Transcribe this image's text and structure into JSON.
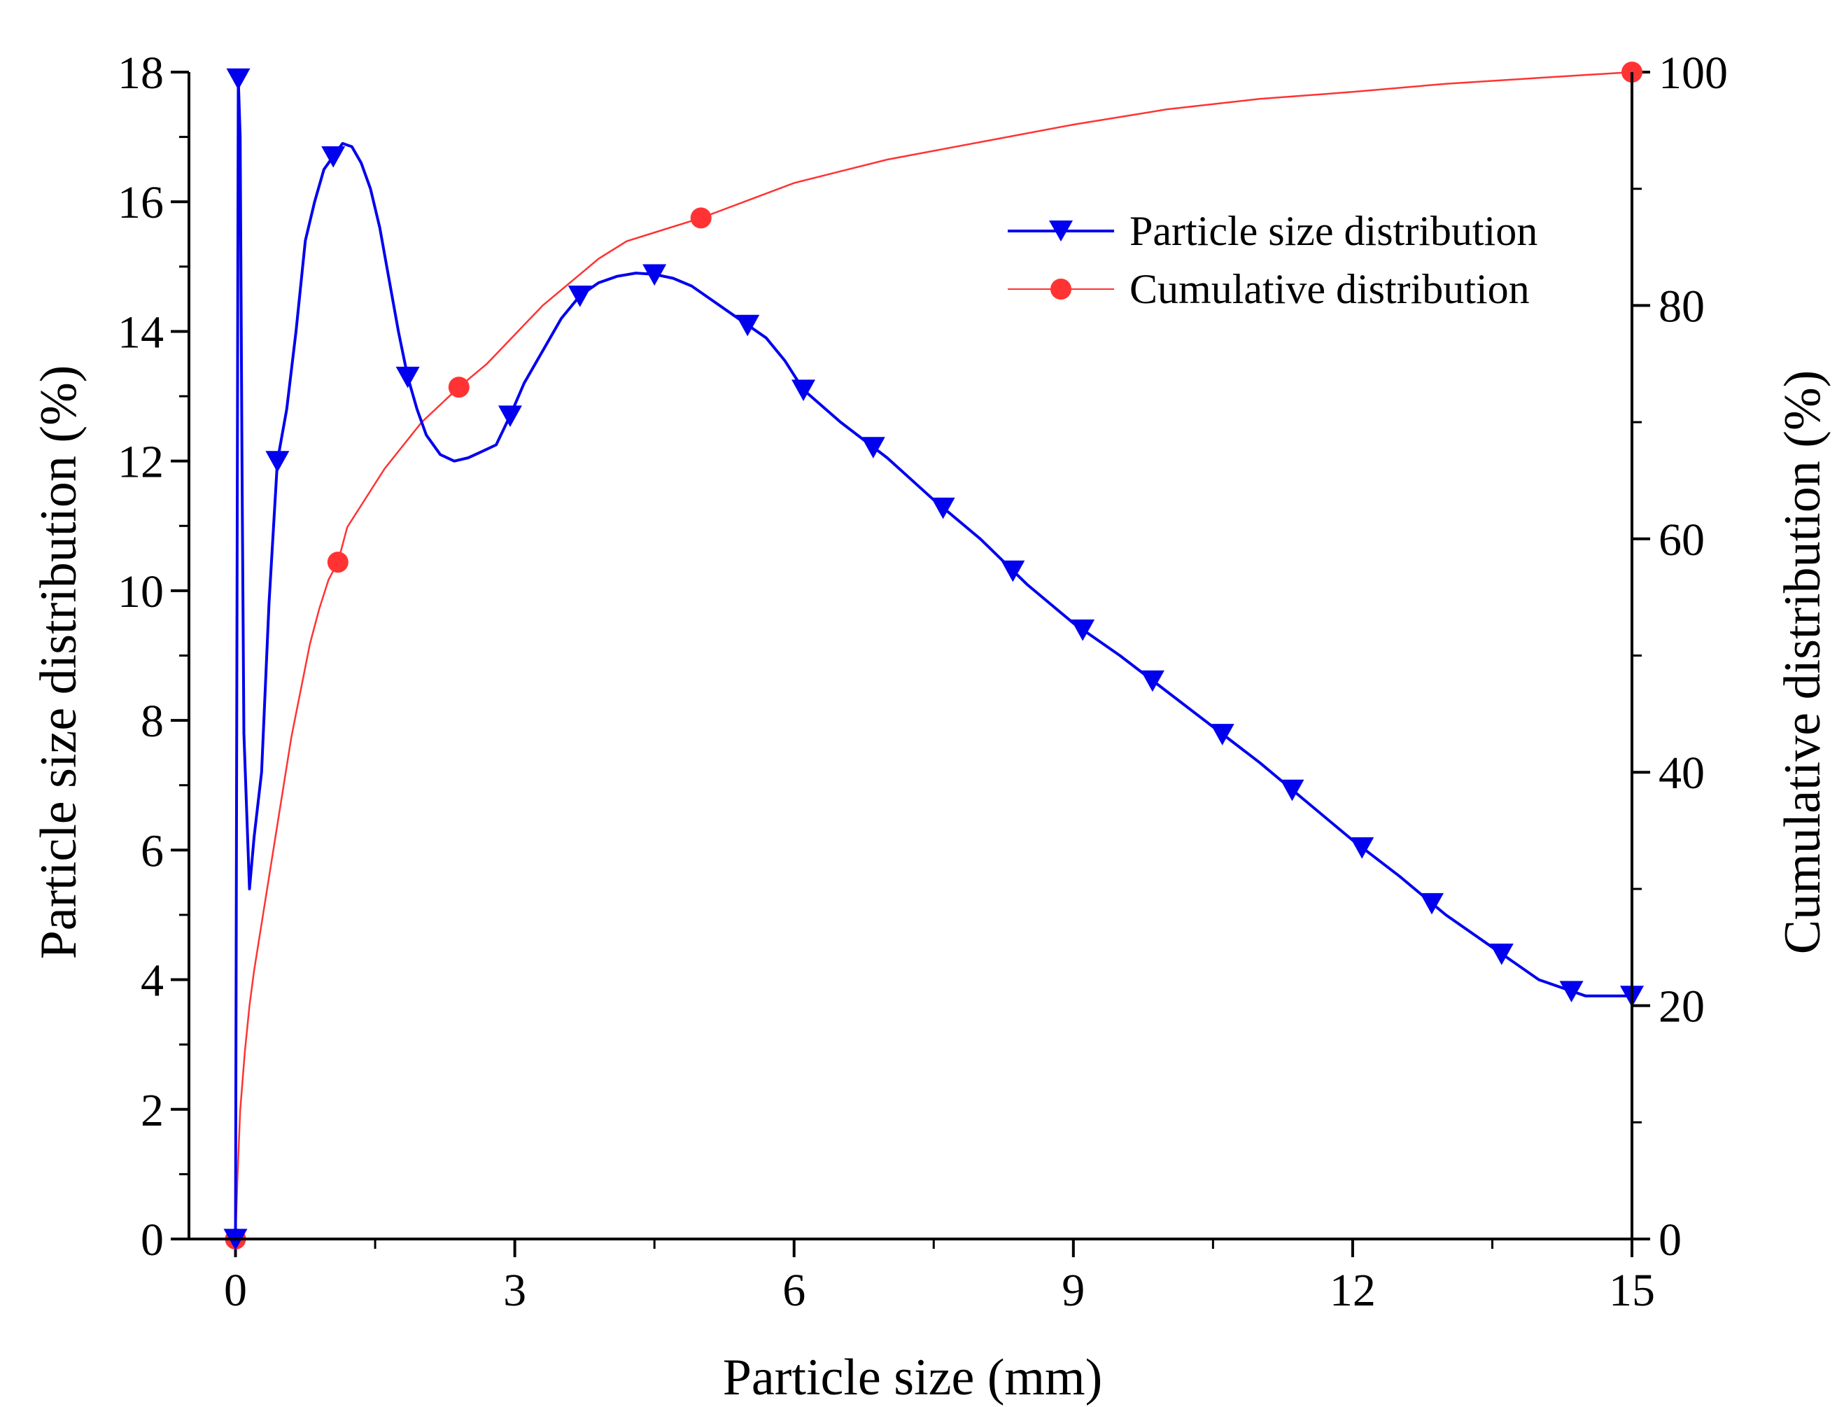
{
  "chart_data": {
    "type": "line",
    "title": "",
    "xlabel": "Particle size (mm)",
    "ylabel_left": "Particle size distribution (%)",
    "ylabel_right": "Cumulative distribution (%)",
    "xlim": [
      -0.5,
      15
    ],
    "ylim_left": [
      0,
      18
    ],
    "ylim_right": [
      0,
      100
    ],
    "x_ticks": [
      0,
      3,
      6,
      9,
      12,
      15
    ],
    "y_left_ticks": [
      0,
      2,
      4,
      6,
      8,
      10,
      12,
      14,
      16,
      18
    ],
    "y_right_ticks": [
      0,
      20,
      40,
      60,
      80,
      100
    ],
    "legend_position": "top-right",
    "colors": {
      "psd": "#0000ee",
      "cumulative": "#ff3333"
    },
    "series": [
      {
        "name": "Particle size distribution",
        "axis": "left",
        "marker": "triangle-down",
        "x": [
          0,
          0.03,
          0.05,
          0.07,
          0.09,
          0.12,
          0.15,
          0.2,
          0.28,
          0.36,
          0.45,
          0.55,
          0.65,
          0.75,
          0.85,
          0.95,
          1.05,
          1.15,
          1.25,
          1.35,
          1.45,
          1.55,
          1.65,
          1.75,
          1.85,
          1.95,
          2.05,
          2.2,
          2.35,
          2.5,
          2.65,
          2.8,
          2.95,
          3.1,
          3.3,
          3.5,
          3.7,
          3.9,
          4.1,
          4.3,
          4.5,
          4.7,
          4.9,
          5.1,
          5.3,
          5.5,
          5.7,
          5.9,
          6.1,
          6.5,
          7.0,
          7.5,
          8.0,
          8.5,
          9.0,
          9.5,
          10.0,
          10.5,
          11.0,
          11.5,
          12.0,
          12.5,
          13.0,
          13.5,
          14.0,
          14.5,
          15.0
        ],
        "values": [
          0,
          17.9,
          17.0,
          12.0,
          7.8,
          6.6,
          5.4,
          6.2,
          7.2,
          9.8,
          12.0,
          12.8,
          14.0,
          15.4,
          16.0,
          16.5,
          16.7,
          16.9,
          16.85,
          16.6,
          16.2,
          15.6,
          14.8,
          14.0,
          13.3,
          12.8,
          12.4,
          12.1,
          12.0,
          12.05,
          12.15,
          12.25,
          12.7,
          13.2,
          13.7,
          14.2,
          14.55,
          14.75,
          14.85,
          14.9,
          14.88,
          14.82,
          14.7,
          14.5,
          14.3,
          14.1,
          13.9,
          13.55,
          13.1,
          12.6,
          12.05,
          11.4,
          10.8,
          10.1,
          9.5,
          9.0,
          8.45,
          7.9,
          7.35,
          6.75,
          6.15,
          5.6,
          5.0,
          4.5,
          4.0,
          3.75,
          3.75
        ]
      },
      {
        "name": "Cumulative distribution",
        "axis": "right",
        "marker": "circle",
        "x": [
          0,
          0.02,
          0.05,
          0.1,
          0.15,
          0.2,
          0.3,
          0.4,
          0.5,
          0.6,
          0.7,
          0.8,
          0.9,
          1.0,
          1.1,
          1.2,
          1.4,
          1.6,
          1.8,
          2.0,
          2.2,
          2.4,
          2.7,
          3.0,
          3.3,
          3.6,
          3.9,
          4.2,
          4.6,
          5.0,
          5.5,
          6.0,
          6.5,
          7.0,
          8.0,
          9.0,
          10.0,
          11.0,
          12.0,
          13.0,
          14.0,
          15.0
        ],
        "values": [
          0,
          5,
          11,
          16,
          20,
          23,
          28,
          33,
          38,
          43,
          47,
          51,
          54,
          56.5,
          58,
          61,
          63.5,
          66,
          68,
          70,
          71.5,
          73,
          75,
          77.5,
          80,
          82,
          84,
          85.5,
          86.5,
          87.5,
          89,
          90.5,
          91.5,
          92.5,
          94,
          95.5,
          96.8,
          97.7,
          98.3,
          99,
          99.5,
          100
        ]
      }
    ]
  }
}
